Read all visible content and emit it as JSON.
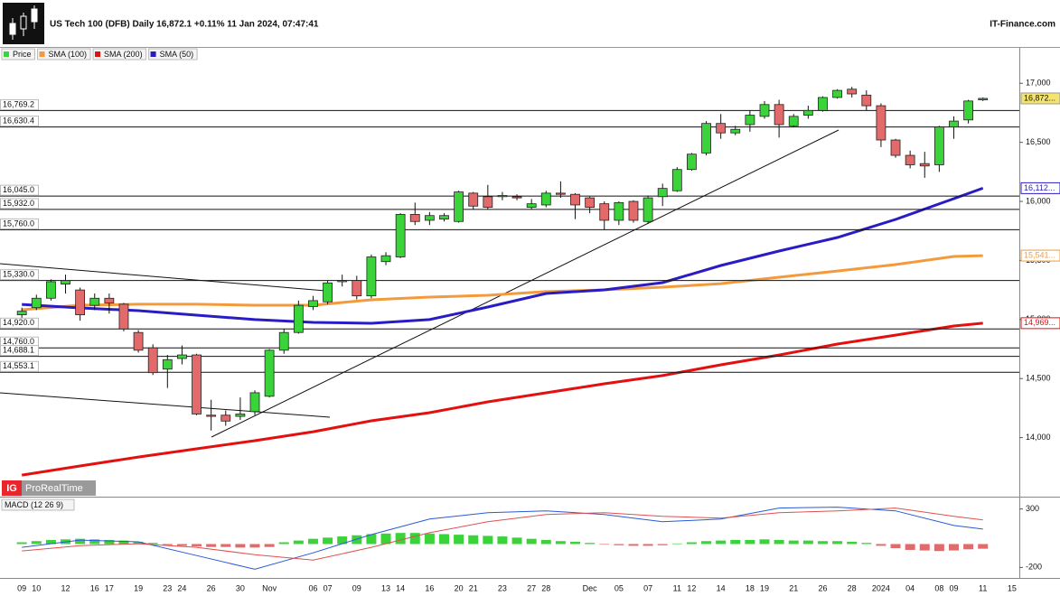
{
  "header": {
    "title": "US Tech 100 (DFB) Daily 16,872.1 +0.11% 11 Jan 2024, 07:47:41",
    "source": "IT-Finance.com"
  },
  "branding": {
    "logo": "IG",
    "name": "ProRealTime"
  },
  "chart_data": [
    {
      "type": "candlestick",
      "name": "Price",
      "up_color": "#3ad43a",
      "down_color": "#e36a6a",
      "categories": [
        "09",
        "10",
        null,
        "12",
        null,
        "16",
        "17",
        null,
        "19",
        null,
        "23",
        "24",
        null,
        "26",
        null,
        "30",
        null,
        "Nov",
        null,
        null,
        "06",
        "07",
        null,
        "09",
        null,
        "13",
        "14",
        null,
        "16",
        null,
        "20",
        "21",
        null,
        "23",
        null,
        "27",
        "28",
        null,
        null,
        "Dec",
        null,
        "05",
        null,
        "07",
        null,
        "11",
        "12",
        null,
        "14",
        null,
        "18",
        "19",
        null,
        "21",
        null,
        "26",
        null,
        "28",
        null,
        "2024",
        null,
        "04",
        null,
        "08",
        "09",
        null,
        "11",
        null,
        "15"
      ],
      "open": [
        15040,
        15100,
        15180,
        15300,
        15250,
        15120,
        15180,
        15130,
        14890,
        14760,
        14580,
        14670,
        14700,
        14190,
        14190,
        14180,
        14220,
        14350,
        14740,
        14890,
        15110,
        15150,
        15320,
        15330,
        15200,
        15490,
        15530,
        15890,
        15840,
        15850,
        15830,
        16070,
        16040,
        16040,
        16040,
        15950,
        15970,
        16070,
        16060,
        16030,
        15980,
        15840,
        16000,
        15830,
        16040,
        16090,
        16270,
        16410,
        16660,
        16580,
        16650,
        16720,
        16820,
        16640,
        16730,
        16770,
        16880,
        16950,
        16900,
        16810,
        16520,
        16390,
        16320,
        16310,
        16630,
        16690,
        16860,
        null,
        null
      ],
      "high": [
        15100,
        15210,
        15340,
        15380,
        15270,
        15220,
        15220,
        15140,
        14910,
        14790,
        14700,
        14780,
        14710,
        14320,
        14230,
        14340,
        14400,
        14750,
        14920,
        15160,
        15200,
        15330,
        15380,
        15370,
        15550,
        15570,
        15900,
        15990,
        15910,
        15900,
        16090,
        16080,
        16140,
        16080,
        16060,
        16020,
        16090,
        16170,
        16070,
        16040,
        16000,
        16000,
        16010,
        16050,
        16150,
        16290,
        16410,
        16680,
        16740,
        16640,
        16770,
        16850,
        16860,
        16740,
        16810,
        16890,
        16950,
        16970,
        16940,
        16830,
        16530,
        16430,
        16420,
        16640,
        16720,
        16860,
        16880,
        null,
        null
      ],
      "low": [
        15000,
        15080,
        15160,
        15220,
        14990,
        15080,
        15050,
        14900,
        14720,
        14530,
        14420,
        14620,
        14190,
        14060,
        14100,
        14150,
        14190,
        14340,
        14710,
        14880,
        15080,
        15130,
        15280,
        15170,
        15180,
        15460,
        15520,
        15800,
        15800,
        15830,
        15820,
        15930,
        15930,
        16010,
        16010,
        15930,
        15950,
        16030,
        15850,
        15900,
        15760,
        15800,
        15820,
        15810,
        15960,
        16080,
        16260,
        16390,
        16530,
        16560,
        16590,
        16700,
        16540,
        16630,
        16700,
        16760,
        16870,
        16880,
        16770,
        16460,
        16370,
        16280,
        16200,
        16250,
        16530,
        16660,
        16850,
        null,
        null
      ],
      "close": [
        15070,
        15180,
        15320,
        15330,
        15040,
        15180,
        15140,
        14920,
        14740,
        14550,
        14660,
        14700,
        14200,
        14180,
        14140,
        14200,
        14380,
        14740,
        14890,
        15120,
        15160,
        15310,
        15330,
        15200,
        15530,
        15540,
        15890,
        15830,
        15880,
        15880,
        16080,
        15960,
        15950,
        16050,
        16030,
        15980,
        16070,
        16060,
        15970,
        15950,
        15840,
        15990,
        15840,
        16030,
        16110,
        16270,
        16400,
        16660,
        16580,
        16610,
        16730,
        16820,
        16650,
        16720,
        16770,
        16880,
        16940,
        16910,
        16810,
        16520,
        16390,
        16310,
        16300,
        16630,
        16680,
        16850,
        16872.1,
        null,
        null
      ],
      "last_label": "16,872...",
      "last_color": "#f4e46a",
      "series": [
        {
          "name": "SMA (100)",
          "color": "#f39a3c",
          "last_label": "15,541...",
          "x": [
            0,
            4,
            8,
            12,
            16,
            20,
            24,
            28,
            32,
            36,
            40,
            44,
            48,
            52,
            56,
            60,
            64,
            66
          ],
          "values": [
            15083,
            15121,
            15129,
            15129,
            15121,
            15121,
            15167,
            15190,
            15205,
            15236,
            15251,
            15274,
            15304,
            15358,
            15411,
            15465,
            15534,
            15541
          ]
        },
        {
          "name": "SMA (200)",
          "color": "#e31010",
          "last_label": "14,969...",
          "x": [
            0,
            4,
            8,
            12,
            16,
            20,
            24,
            28,
            32,
            36,
            40,
            44,
            48,
            52,
            56,
            60,
            64,
            66
          ],
          "values": [
            13683,
            13760,
            13836,
            13905,
            13974,
            14050,
            14142,
            14211,
            14303,
            14379,
            14456,
            14525,
            14616,
            14700,
            14792,
            14868,
            14945,
            14969
          ]
        },
        {
          "name": "SMA (50)",
          "color": "#2a1cc4",
          "last_label": "16,112...",
          "x": [
            0,
            4,
            8,
            12,
            16,
            20,
            24,
            28,
            32,
            36,
            40,
            44,
            48,
            52,
            56,
            60,
            64,
            66
          ],
          "values": [
            15128,
            15098,
            15075,
            15037,
            14999,
            14976,
            14968,
            14999,
            15106,
            15220,
            15251,
            15312,
            15457,
            15580,
            15694,
            15847,
            16023,
            16112
          ]
        }
      ],
      "levels": [
        {
          "value": 16769.2,
          "label": "16,769.2"
        },
        {
          "value": 16630.4,
          "label": "16,630.4"
        },
        {
          "value": 16045.0,
          "label": "16,045.0"
        },
        {
          "value": 15932.0,
          "label": "15,932.0"
        },
        {
          "value": 15760.0,
          "label": "15,760.0"
        },
        {
          "value": 15330.0,
          "label": "15,330.0"
        },
        {
          "value": 14920.0,
          "label": "14,920.0"
        },
        {
          "value": 14760.0,
          "label": "14,760.0"
        },
        {
          "value": 14688.1,
          "label": "14,688.1"
        },
        {
          "value": 14553.1,
          "label": "14,553.1"
        }
      ],
      "ylim": [
        13500,
        17300
      ],
      "yticks": [
        {
          "value": 14000,
          "label": "14,000"
        },
        {
          "value": 14500,
          "label": "14,500"
        },
        {
          "value": 15000,
          "label": "15,000"
        },
        {
          "value": 15500,
          "label": "15,500"
        },
        {
          "value": 16000,
          "label": "16,000"
        },
        {
          "value": 16500,
          "label": "16,500"
        },
        {
          "value": 17000,
          "label": "17,000"
        }
      ]
    },
    {
      "type": "macd",
      "title": "MACD (12 26 9)",
      "up_color": "#3ad43a",
      "down_color": "#e36a6a",
      "histogram": [
        15,
        25,
        35,
        40,
        45,
        40,
        35,
        30,
        20,
        10,
        -10,
        -15,
        -20,
        -25,
        -25,
        -30,
        -30,
        -25,
        15,
        30,
        45,
        55,
        65,
        75,
        85,
        90,
        95,
        95,
        90,
        85,
        80,
        75,
        70,
        65,
        55,
        45,
        35,
        25,
        20,
        10,
        -5,
        -10,
        -15,
        -15,
        -10,
        5,
        15,
        25,
        30,
        35,
        35,
        40,
        35,
        30,
        30,
        25,
        25,
        20,
        10,
        -15,
        -35,
        -50,
        -55,
        -60,
        -55,
        -45,
        -40,
        null,
        null
      ],
      "series": [
        {
          "color": "#2a5ad8",
          "x": [
            0,
            4,
            8,
            12,
            16,
            20,
            24,
            28,
            32,
            36,
            40,
            44,
            48,
            52,
            56,
            60,
            64,
            66
          ],
          "values": [
            -28,
            34,
            19,
            -98,
            -216,
            -75,
            81,
            214,
            269,
            284,
            253,
            191,
            214,
            308,
            316,
            284,
            159,
            128
          ]
        },
        {
          "color": "#e05050",
          "x": [
            0,
            4,
            8,
            12,
            16,
            20,
            24,
            28,
            32,
            36,
            40,
            44,
            48,
            52,
            56,
            60,
            64,
            66
          ],
          "values": [
            -59,
            -13,
            3,
            -28,
            -91,
            -138,
            -28,
            97,
            191,
            253,
            269,
            238,
            222,
            269,
            284,
            308,
            238,
            206
          ]
        }
      ],
      "ylim": [
        -290,
        390
      ],
      "yticks": [
        -200,
        300
      ]
    }
  ]
}
